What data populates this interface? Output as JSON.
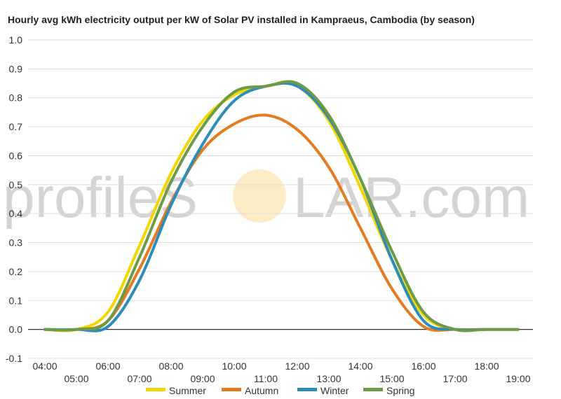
{
  "watermark": {
    "left": "profileS",
    "right": "LAR.com"
  },
  "chart_data": {
    "type": "line",
    "title": "Hourly avg kWh electricity output per kW of Solar PV installed in Kampraeus, Cambodia (by season)",
    "xlabel": "",
    "ylabel": "",
    "x": [
      "04:00",
      "05:00",
      "06:00",
      "07:00",
      "08:00",
      "09:00",
      "10:00",
      "11:00",
      "12:00",
      "13:00",
      "14:00",
      "15:00",
      "16:00",
      "17:00",
      "18:00",
      "19:00"
    ],
    "ylim": [
      -0.1,
      1.0
    ],
    "yticks": [
      "-0.1",
      "0.0",
      "0.1",
      "0.2",
      "0.3",
      "0.4",
      "0.5",
      "0.6",
      "0.7",
      "0.8",
      "0.9",
      "1.0"
    ],
    "grid": true,
    "legend": "bottom",
    "series": [
      {
        "name": "Summer",
        "color": "#f2d600",
        "values": [
          0,
          0,
          0.06,
          0.29,
          0.54,
          0.72,
          0.81,
          0.84,
          0.84,
          0.72,
          0.49,
          0.24,
          0.05,
          0,
          0,
          0
        ]
      },
      {
        "name": "Autumn",
        "color": "#e57a1f",
        "values": [
          0,
          0,
          0.03,
          0.21,
          0.44,
          0.62,
          0.71,
          0.74,
          0.69,
          0.56,
          0.35,
          0.14,
          0.01,
          0,
          0,
          0
        ]
      },
      {
        "name": "Winter",
        "color": "#2a8dba",
        "values": [
          0,
          0,
          0.01,
          0.17,
          0.43,
          0.64,
          0.79,
          0.84,
          0.84,
          0.73,
          0.52,
          0.24,
          0.03,
          0,
          0,
          0
        ]
      },
      {
        "name": "Spring",
        "color": "#6c9a45",
        "values": [
          0,
          0,
          0.03,
          0.25,
          0.51,
          0.7,
          0.82,
          0.84,
          0.85,
          0.74,
          0.52,
          0.27,
          0.06,
          0,
          0,
          0
        ]
      }
    ]
  }
}
